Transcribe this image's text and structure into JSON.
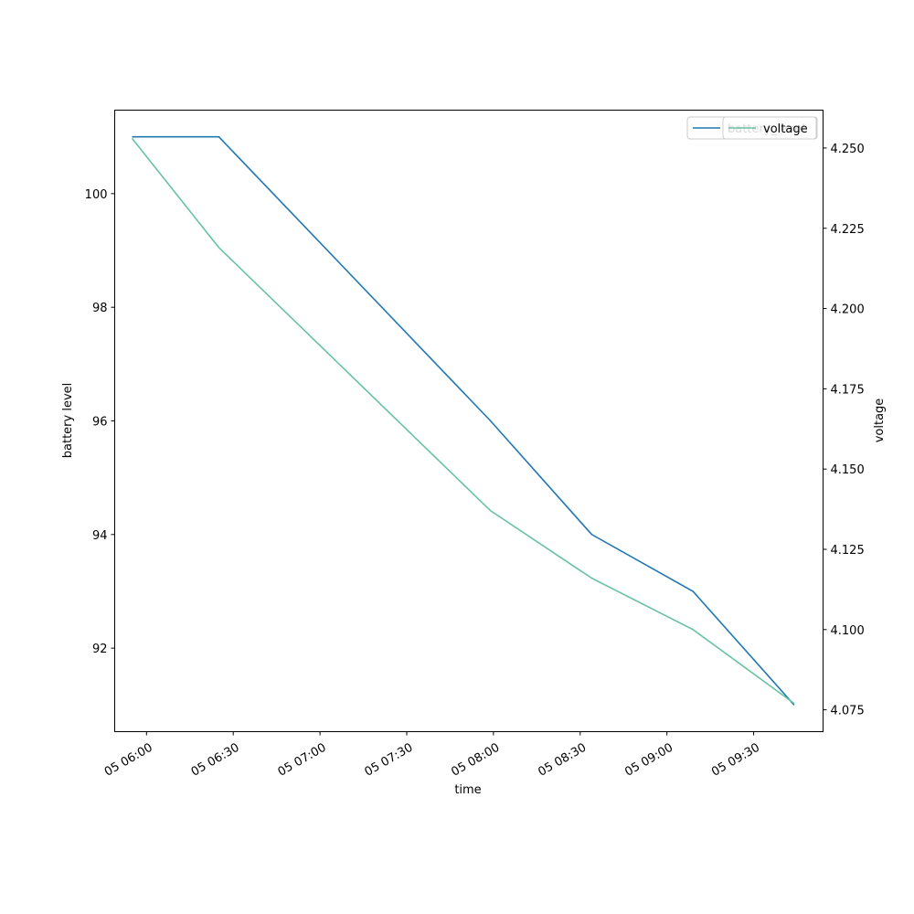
{
  "chart_data": {
    "type": "line",
    "xlabel": "time",
    "ylabel": "battery level",
    "y2label": "voltage",
    "x_format": "DD HH:MM",
    "xlim": [
      "2024-01-05 05:49",
      "2024-01-05 09:54"
    ],
    "ylim": [
      90.53,
      101.47
    ],
    "y2lim": [
      4.0682,
      4.2618
    ],
    "x_ticks": [
      "05 06:00",
      "05 06:30",
      "05 07:00",
      "05 07:30",
      "05 08:00",
      "05 08:30",
      "05 09:00",
      "05 09:30"
    ],
    "y_ticks": [
      "92",
      "94",
      "96",
      "98",
      "100"
    ],
    "y2_ticks": [
      "4.075",
      "4.100",
      "4.125",
      "4.150",
      "4.175",
      "4.200",
      "4.225",
      "4.250"
    ],
    "grid": false,
    "legend_position": "top-right",
    "series": [
      {
        "name": "battery_level",
        "axis": "left",
        "color": "#1f77b4",
        "x": [
          "2024-01-05 05:55",
          "2024-01-05 06:25",
          "2024-01-05 07:59",
          "2024-01-05 08:34",
          "2024-01-05 09:09",
          "2024-01-05 09:44"
        ],
        "values": [
          101,
          101,
          96,
          94,
          93,
          91
        ]
      },
      {
        "name": "voltage",
        "axis": "right",
        "color": "#66c2a5",
        "x": [
          "2024-01-05 05:55",
          "2024-01-05 06:25",
          "2024-01-05 07:59",
          "2024-01-05 08:34",
          "2024-01-05 09:09",
          "2024-01-05 09:44"
        ],
        "values": [
          4.253,
          4.219,
          4.137,
          4.116,
          4.1,
          4.077
        ]
      }
    ]
  }
}
